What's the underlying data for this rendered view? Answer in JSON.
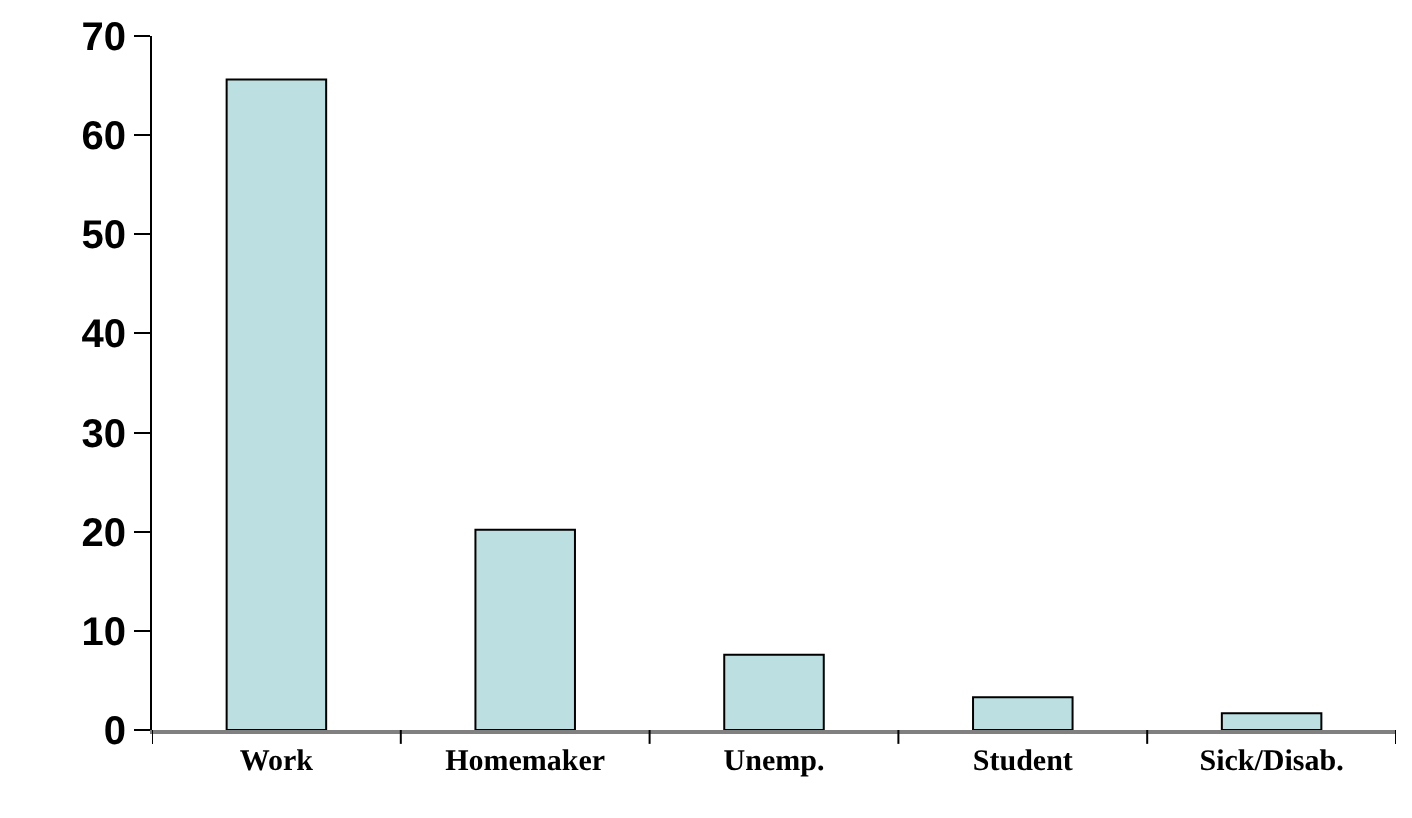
{
  "chart_data": {
    "type": "bar",
    "categories": [
      "Work",
      "Homemaker",
      "Unemp.",
      "Student",
      "Sick/Disab."
    ],
    "values": [
      65.6,
      20.2,
      7.6,
      3.3,
      1.7
    ],
    "color": "#bce0e1",
    "ylim": [
      0,
      70
    ],
    "yticks": [
      0,
      10,
      20,
      30,
      40,
      50,
      60,
      70
    ]
  }
}
